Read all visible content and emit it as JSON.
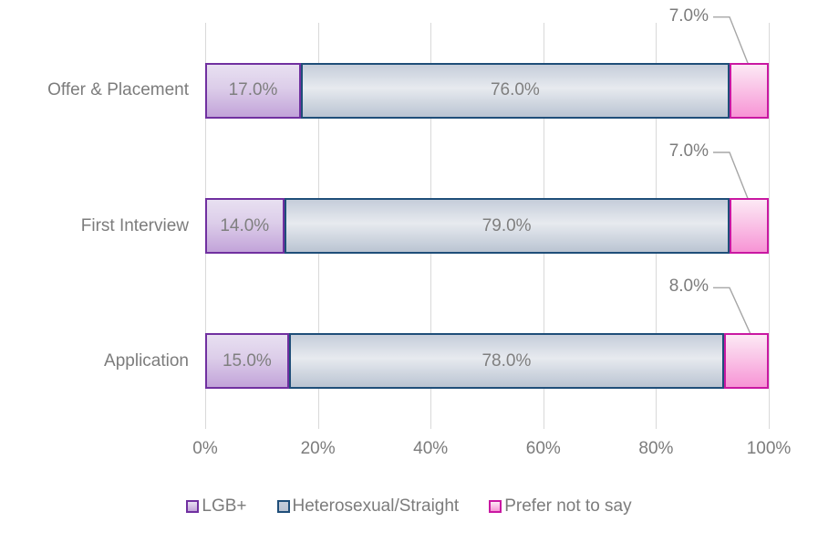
{
  "chart_data": {
    "type": "bar",
    "orientation": "horizontal",
    "stacked": true,
    "title": "",
    "categories": [
      "Offer & Placement",
      "First Interview",
      "Application"
    ],
    "series": [
      {
        "name": "LGB+",
        "values": [
          17.0,
          14.0,
          15.0
        ],
        "labels": [
          "17.0%",
          "14.0%",
          "15.0%"
        ],
        "label_placement": "inside",
        "border_color": "#7030A0",
        "fill_top": "#E8E0F1",
        "fill_mid": "#DCCDE9",
        "fill_bottom": "#C2A3D9"
      },
      {
        "name": "Heterosexual/Straight",
        "values": [
          76.0,
          79.0,
          78.0
        ],
        "labels": [
          "76.0%",
          "79.0%",
          "78.0%"
        ],
        "label_placement": "inside",
        "border_color": "#1F4E79",
        "fill_top": "#C5CDDA",
        "fill_mid": "#E7EAEF",
        "fill_bottom": "#BAC4D2"
      },
      {
        "name": "Prefer not to say",
        "values": [
          7.0,
          7.0,
          8.0
        ],
        "labels": [
          "7.0%",
          "7.0%",
          "8.0%"
        ],
        "label_placement": "callout",
        "border_color": "#C918A2",
        "fill_top": "#FCE9F5",
        "fill_mid": "#FAC4E7",
        "fill_bottom": "#F794D5"
      }
    ],
    "x_axis": {
      "min": 0,
      "max": 100,
      "ticks": [
        "0%",
        "20%",
        "40%",
        "60%",
        "80%",
        "100%"
      ],
      "grid": true
    },
    "legend": {
      "position": "bottom",
      "entries": [
        "LGB+",
        "Heterosexual/Straight",
        "Prefer not to say"
      ]
    },
    "colors": {
      "background": "#FFFFFF",
      "text": "#7C7C7C",
      "data_label_text": "#7F7F7F",
      "gridline": "#D9D9D9",
      "leader_line": "#A6A6A6"
    }
  }
}
